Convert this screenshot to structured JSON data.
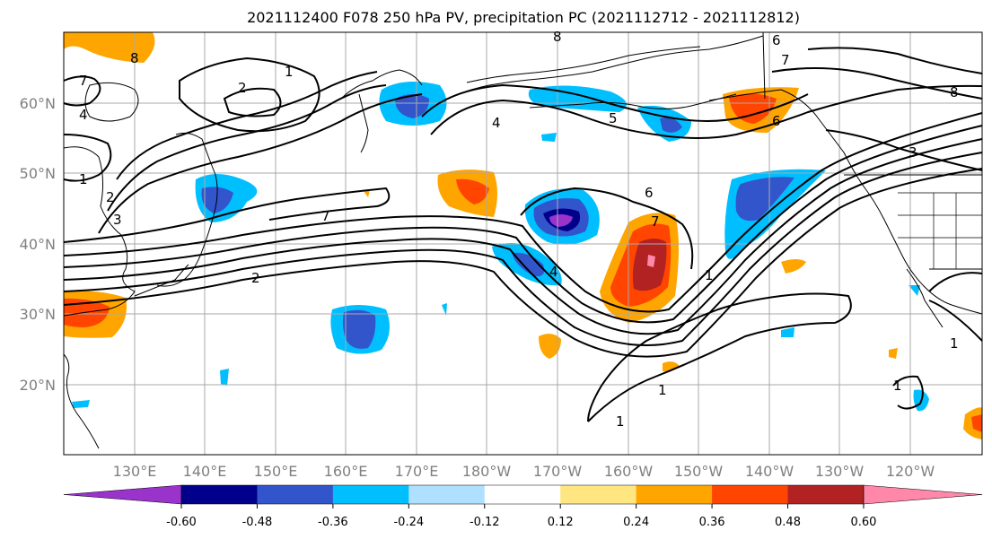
{
  "title": "2021112400 F078 250 hPa PV, precipitation PC (2021112712 - 2021112812)",
  "lat_labels": [
    "60°N",
    "50°N",
    "40°N",
    "30°N",
    "20°N"
  ],
  "lon_labels": [
    "130°E",
    "140°E",
    "150°E",
    "160°E",
    "170°E",
    "180°W",
    "170°W",
    "160°W",
    "150°W",
    "140°W",
    "130°W",
    "120°W"
  ],
  "colorbar": {
    "colors": [
      "#9933cc",
      "#00008b",
      "#3355cc",
      "#00bfff",
      "#b0e0ff",
      "#ffffff",
      "#ffe680",
      "#ffa500",
      "#ff4500",
      "#b22222",
      "#ff88aa"
    ],
    "tick_labels": [
      "-0.60",
      "-0.48",
      "-0.36",
      "-0.24",
      "-0.12",
      "0.12",
      "0.24",
      "0.36",
      "0.48",
      "0.60"
    ]
  },
  "contour_labels": [
    "2",
    "1",
    "4",
    "7",
    "8",
    "1",
    "2",
    "3",
    "7",
    "2",
    "4",
    "5",
    "6",
    "6",
    "7",
    "8",
    "1",
    "3",
    "6",
    "7",
    "4",
    "1",
    "1",
    "1",
    "1",
    "8"
  ]
}
